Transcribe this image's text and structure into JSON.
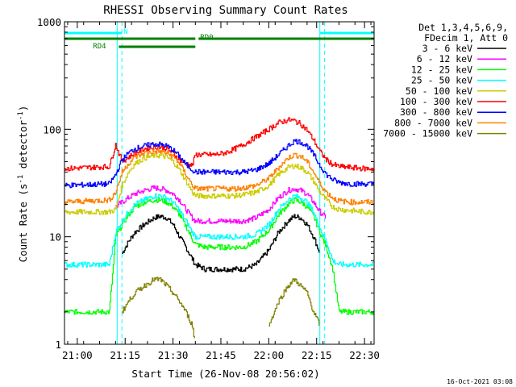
{
  "chart_data": {
    "type": "line",
    "title": "RHESSI Observing Summary Count Rates",
    "xlabel": "Start Time (26-Nov-08 20:56:02)",
    "ylabel_main": "Count Rate (s",
    "ylabel_sup1": "-1",
    "ylabel_mid": " detector",
    "ylabel_sup2": "-1",
    "ylabel_end": ")",
    "y_scale": "log",
    "ylim": [
      1,
      1000
    ],
    "xlim_minutes": [
      0,
      97
    ],
    "x_ticks": [
      {
        "minute": 4,
        "label": "21:00"
      },
      {
        "minute": 19,
        "label": "21:15"
      },
      {
        "minute": 34,
        "label": "21:30"
      },
      {
        "minute": 49,
        "label": "21:45"
      },
      {
        "minute": 64,
        "label": "22:00"
      },
      {
        "minute": 79,
        "label": "22:15"
      },
      {
        "minute": 94,
        "label": "22:30"
      }
    ],
    "y_ticks": [
      {
        "value": 1,
        "label": "1"
      },
      {
        "value": 10,
        "label": "10"
      },
      {
        "value": 100,
        "label": "100"
      },
      {
        "value": 1000,
        "label": "1000"
      }
    ],
    "legend_header": [
      "Det 1,3,4,5,6,9,",
      "FDecim 1, Att 0"
    ],
    "legend_placement": "right",
    "timestamp": "16-Oct-2021 03:08",
    "flags": [
      {
        "label": "N",
        "color": "#00ffff",
        "segments": [
          [
            0,
            18
          ],
          [
            80,
            97
          ]
        ]
      },
      {
        "label": "RD0",
        "color": "#008000",
        "segments": [
          [
            0,
            41
          ],
          [
            42,
            97
          ]
        ]
      },
      {
        "label": "RD4",
        "color": "#008000",
        "segments": [
          [
            17,
            41
          ]
        ]
      }
    ],
    "event_lines": [
      {
        "minute": 16.5,
        "color": "#00ffff",
        "style": "solid"
      },
      {
        "minute": 18,
        "color": "#00ffff",
        "style": "dashed"
      },
      {
        "minute": 80,
        "color": "#00ffff",
        "style": "solid"
      },
      {
        "minute": 81.5,
        "color": "#00ffff",
        "style": "dashed"
      },
      {
        "minute": 97,
        "color": "#00ffff",
        "style": "dashed"
      }
    ],
    "x": [
      0,
      14,
      16,
      18,
      20,
      22,
      25,
      28,
      30,
      32,
      34,
      36,
      38,
      40,
      41,
      44,
      47,
      50,
      53,
      56,
      60,
      64,
      67,
      70,
      72,
      74,
      76,
      78,
      80,
      82,
      84,
      86,
      90,
      94,
      97
    ],
    "series": [
      {
        "name": "3 - 6 keV",
        "color": "#000000",
        "values": [
          null,
          null,
          null,
          7,
          9,
          11,
          13,
          15,
          15.5,
          15,
          13,
          10,
          8,
          6.2,
          5.5,
          5,
          5,
          5,
          5,
          5,
          5.5,
          7.5,
          11,
          14,
          15.5,
          15,
          13,
          10,
          7,
          null,
          null,
          null,
          null,
          null,
          null
        ]
      },
      {
        "name": "6 - 12 keV",
        "color": "#ff00ff",
        "values": [
          null,
          null,
          19,
          21,
          23,
          25,
          27,
          28.5,
          28,
          27,
          25,
          22,
          18,
          15,
          14,
          14,
          14,
          14,
          14,
          14,
          15,
          18,
          23,
          27,
          28,
          27,
          25,
          21,
          17,
          15,
          null,
          null,
          null,
          null,
          null
        ]
      },
      {
        "name": "12 - 25 keV",
        "color": "#00ff00",
        "values": [
          2,
          2,
          10,
          13,
          16,
          19,
          21,
          22,
          22,
          21,
          19,
          16,
          12.5,
          9.5,
          8.5,
          8,
          8,
          8,
          8,
          8,
          9,
          11.5,
          16,
          20,
          22,
          21,
          19,
          15.5,
          11,
          8,
          5,
          2,
          2,
          2,
          2
        ]
      },
      {
        "name": "25 - 50 keV",
        "color": "#00ffff",
        "values": [
          5.5,
          5.5,
          11,
          14,
          17,
          20,
          22,
          24,
          24,
          23,
          21,
          17.5,
          14,
          11,
          10,
          10,
          10,
          10,
          10,
          10,
          10.5,
          13,
          18,
          22,
          24,
          23,
          21,
          17,
          12,
          9,
          6,
          5.5,
          5.5,
          5.5,
          5.5
        ]
      },
      {
        "name": "50 - 100 keV",
        "color": "#cccc00",
        "values": [
          17,
          17,
          18,
          30,
          40,
          48,
          54,
          57,
          57,
          55,
          50,
          42,
          33,
          26,
          24,
          24,
          24,
          24,
          24,
          24.5,
          26,
          30,
          38,
          44,
          46,
          44,
          40,
          33,
          26,
          22,
          19,
          18,
          17.5,
          17,
          17
        ]
      },
      {
        "name": "100 - 300 keV",
        "color": "#ff0000",
        "values": [
          43,
          45,
          72,
          50,
          55,
          60,
          66,
          68,
          68,
          66,
          60,
          52,
          48,
          46,
          58,
          58,
          58,
          60,
          65,
          72,
          85,
          100,
          115,
          122,
          120,
          112,
          98,
          80,
          62,
          52,
          47,
          45,
          44,
          43,
          43
        ]
      },
      {
        "name": "300 - 800 keV",
        "color": "#0000ff",
        "values": [
          30,
          31,
          38,
          52,
          60,
          66,
          70,
          73,
          72,
          70,
          64,
          56,
          47,
          42,
          40,
          40,
          40,
          40,
          40,
          40,
          42,
          48,
          58,
          70,
          78,
          76,
          70,
          58,
          46,
          38,
          34,
          32,
          31,
          31,
          31
        ]
      },
      {
        "name": "800 - 7000 keV",
        "color": "#ff8000",
        "values": [
          21,
          22,
          26,
          40,
          48,
          55,
          60,
          62,
          62,
          60,
          56,
          48,
          38,
          30,
          28,
          28,
          28,
          28,
          28,
          28.5,
          30,
          35,
          44,
          54,
          58,
          56,
          50,
          40,
          31,
          26,
          23,
          21.5,
          21,
          21,
          21
        ]
      },
      {
        "name": "7000 - 15000 keV",
        "color": "#808000",
        "values": [
          null,
          null,
          null,
          2,
          2.5,
          3,
          3.5,
          4,
          4,
          3.5,
          3,
          2.5,
          2,
          1.5,
          1,
          null,
          null,
          null,
          null,
          null,
          null,
          1.5,
          2.5,
          3.5,
          4,
          3.5,
          3,
          2,
          1.5,
          null,
          null,
          null,
          null,
          null,
          null
        ]
      }
    ]
  }
}
